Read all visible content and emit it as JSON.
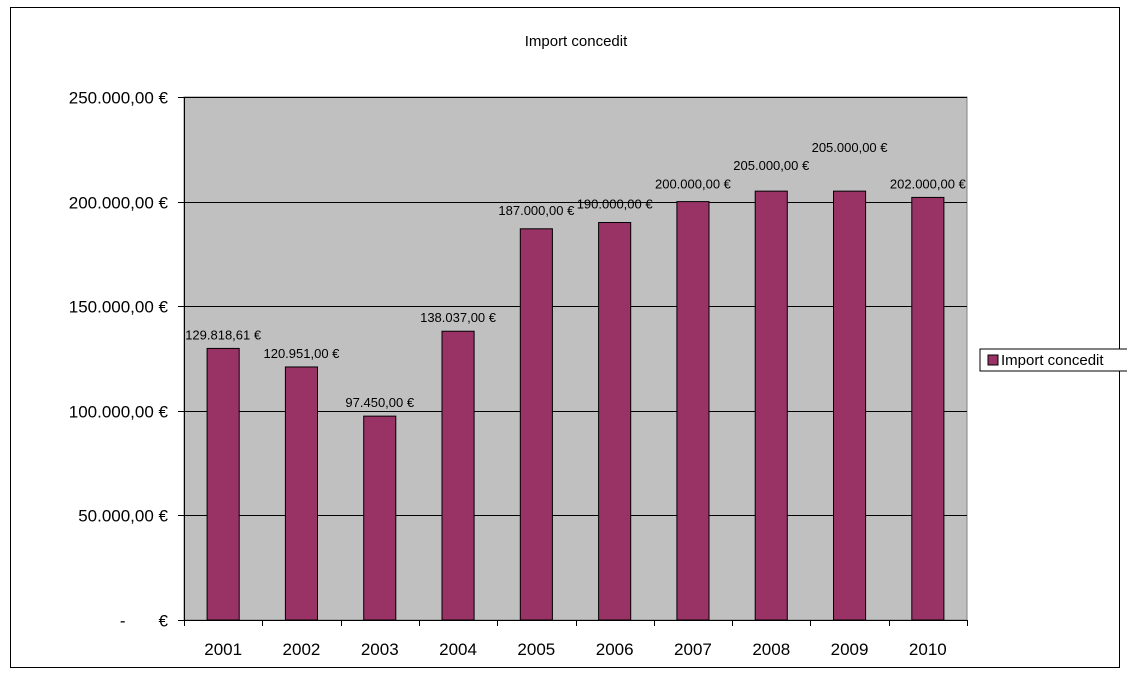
{
  "chart_data": {
    "type": "bar",
    "title": "Import concedit",
    "categories": [
      "2001",
      "2002",
      "2003",
      "2004",
      "2005",
      "2006",
      "2007",
      "2008",
      "2009",
      "2010"
    ],
    "series": [
      {
        "name": "Import concedit",
        "values": [
          129818.61,
          120951.0,
          97450.0,
          138037.0,
          187000.0,
          190000.0,
          200000.0,
          205000.0,
          205000.0,
          202000.0
        ],
        "labels": [
          "129.818,61 €",
          "120.951,00 €",
          "97.450,00 €",
          "138.037,00 €",
          "187.000,00 €",
          "190.000,00 €",
          "200.000,00 €",
          "205.000,00 €",
          "205.000,00 €",
          "202.000,00 €"
        ]
      }
    ],
    "y_ticks": [
      0,
      50000,
      100000,
      150000,
      200000,
      250000
    ],
    "y_tick_labels": [
      "-       €",
      "50.000,00 €",
      "100.000,00 €",
      "150.000,00 €",
      "200.000,00 €",
      "250.000,00 €"
    ],
    "ylim": [
      0,
      250000
    ],
    "xlabel": "",
    "ylabel": "",
    "grid": true,
    "legend_position": "right",
    "colors": {
      "bar": "#993366",
      "plot_background": "#c0c0c0",
      "grid": "#000000"
    }
  }
}
